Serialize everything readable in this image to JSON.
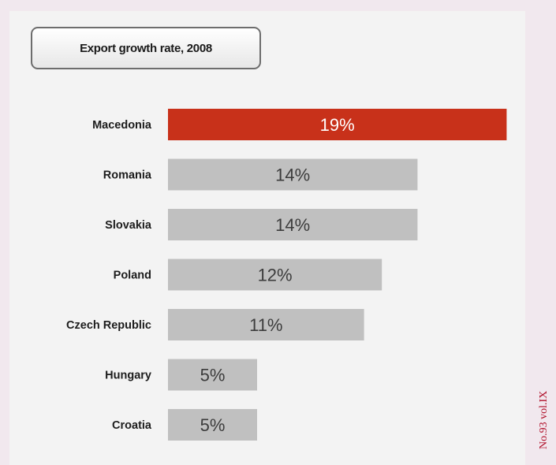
{
  "chart_data": {
    "type": "bar",
    "orientation": "horizontal",
    "title": "Export growth rate, 2008",
    "categories": [
      "Macedonia",
      "Romania",
      "Slovakia",
      "Poland",
      "Czech Republic",
      "Hungary",
      "Croatia"
    ],
    "values": [
      19,
      14,
      14,
      12,
      11,
      5,
      5
    ],
    "data_labels": [
      "19%",
      "14%",
      "14%",
      "12%",
      "11%",
      "5%",
      "5%"
    ],
    "unit": "%",
    "highlight_color": "#c8311a",
    "bar_color": "#c0c0c0",
    "highlight_label_color": "#ffffff",
    "label_color": "#3c3c3c",
    "grid": false,
    "legend": "none"
  },
  "footer": {
    "journal_label": "No.93 vol.IX"
  }
}
